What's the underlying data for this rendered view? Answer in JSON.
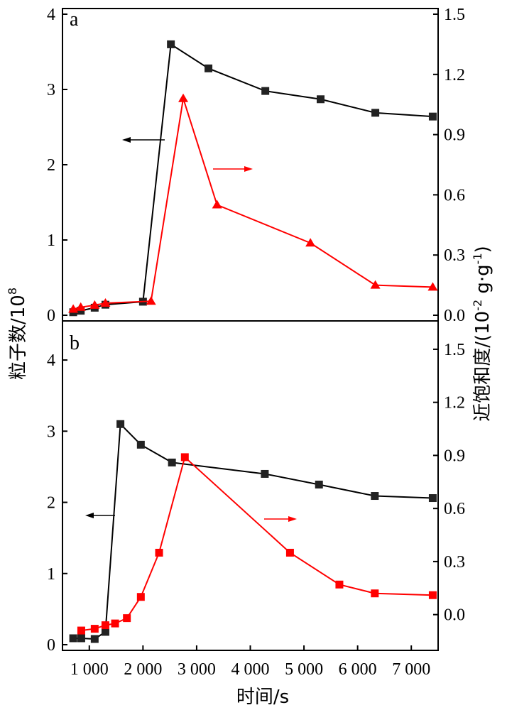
{
  "chart_data": {
    "type": "line",
    "xlabel": "时间/s",
    "x_ticks": [
      1000,
      2000,
      3000,
      4000,
      5000,
      6000,
      7000
    ],
    "x_tick_labels": [
      "1 000",
      "2 000",
      "3 000",
      "4 000",
      "5 000",
      "6 000",
      "7 000"
    ],
    "xlim": [
      500,
      7500
    ],
    "ylabel_left": "粒子数/10^8",
    "ylabel_right": "近饱和度/(10^-2 g·g^-1)",
    "colors": {
      "left_series": "#000000",
      "right_series": "#ff0000",
      "marker_left": "#222222"
    },
    "panels": [
      {
        "label": "a",
        "ylim_left": [
          0,
          4
        ],
        "yticks_left": [
          0,
          1,
          2,
          3,
          4
        ],
        "ylim_right": [
          0,
          1.5
        ],
        "yticks_right": [
          "0.0",
          "0.3",
          "0.6",
          "0.9",
          "1.2",
          "1.5"
        ],
        "series": [
          {
            "axis": "left",
            "marker": "square",
            "color": "#000000",
            "x": [
              700,
              840,
              1100,
              1300,
              2000,
              2520,
              3220,
              4280,
              5310,
              6330,
              7400
            ],
            "y": [
              0.04,
              0.06,
              0.1,
              0.14,
              0.18,
              3.6,
              3.28,
              2.98,
              2.87,
              2.69,
              2.64
            ]
          },
          {
            "axis": "right",
            "marker": "triangle",
            "color": "#ff0000",
            "x": [
              700,
              840,
              1100,
              1300,
              2150,
              2750,
              3380,
              5120,
              6330,
              7400
            ],
            "y": [
              0.03,
              0.04,
              0.05,
              0.06,
              0.07,
              1.08,
              0.55,
              0.36,
              0.15,
              0.14
            ]
          }
        ]
      },
      {
        "label": "b",
        "ylim_left": [
          0,
          4.35
        ],
        "yticks_left": [
          0,
          1,
          2,
          3,
          4
        ],
        "ylim_right": [
          -0.17,
          1.58
        ],
        "yticks_right": [
          "0.0",
          "0.3",
          "0.6",
          "0.9",
          "1.2",
          "1.5"
        ],
        "series": [
          {
            "axis": "left",
            "marker": "square",
            "color": "#000000",
            "x": [
              700,
              850,
              1100,
              1300,
              1580,
              1960,
              2540,
              4270,
              5280,
              6320,
              7400
            ],
            "y": [
              0.09,
              0.09,
              0.08,
              0.18,
              3.1,
              2.81,
              2.56,
              2.4,
              2.25,
              2.09,
              2.06
            ]
          },
          {
            "axis": "right",
            "marker": "square",
            "color": "#ff0000",
            "x": [
              850,
              1100,
              1300,
              1480,
              1700,
              1960,
              2300,
              2780,
              4740,
              5660,
              6320,
              7400
            ],
            "y": [
              -0.09,
              -0.08,
              -0.06,
              -0.05,
              -0.02,
              0.1,
              0.35,
              0.89,
              0.35,
              0.17,
              0.12,
              0.11
            ]
          }
        ]
      }
    ]
  }
}
